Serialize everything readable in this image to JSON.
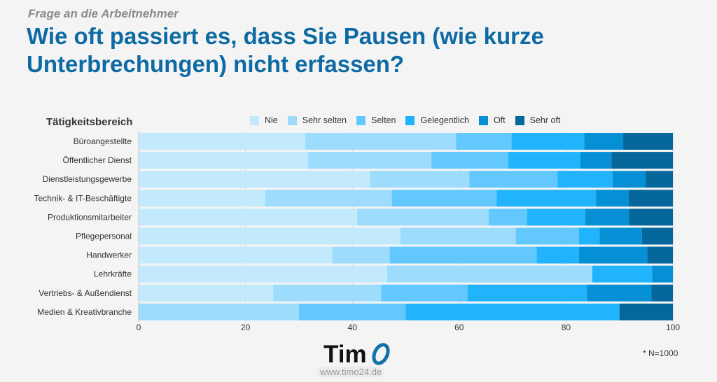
{
  "header": {
    "kicker": "Frage an die Arbeitnehmer",
    "title": "Wie oft passiert es, dass Sie Pausen (wie kurze Unterbrechungen) nicht erfassen?"
  },
  "chart_data": {
    "type": "bar",
    "orientation": "horizontal",
    "stacked": true,
    "category_label": "Tätigkeitsbereich",
    "categories": [
      "Büroangestellte",
      "Öffentlicher Dienst",
      "Dienstleistungsgewerbe",
      "Technik- & IT-Beschäftigte",
      "Produktionsmitarbeiter",
      "Pflegepersonal",
      "Handwerker",
      "Lehrkräfte",
      "Vertriebs- & Außendienst",
      "Medien & Kreativbranche"
    ],
    "series": [
      {
        "name": "Nie",
        "color": "#c2e9fc",
        "values": [
          31.2,
          31.7,
          43.3,
          23.7,
          40.9,
          49.0,
          36.3,
          46.5,
          25.2,
          0
        ]
      },
      {
        "name": "Sehr selten",
        "color": "#9ddcfd",
        "values": [
          28.2,
          23.1,
          18.6,
          23.7,
          24.6,
          21.6,
          10.7,
          38.4,
          20.2,
          30
        ]
      },
      {
        "name": "Selten",
        "color": "#62c8fd",
        "values": [
          10.4,
          14.4,
          16.5,
          19.6,
          7.2,
          11.8,
          27.5,
          0,
          16.2,
          20
        ]
      },
      {
        "name": "Gelegentlich",
        "color": "#21b4fc",
        "values": [
          13.6,
          13.5,
          10.3,
          18.6,
          10.9,
          3.9,
          7.9,
          11.2,
          22.3,
          40
        ]
      },
      {
        "name": "Oft",
        "color": "#0590d6",
        "values": [
          7.3,
          5.8,
          6.2,
          6.1,
          8.2,
          7.9,
          12.8,
          3.9,
          12.1,
          0
        ]
      },
      {
        "name": "Sehr oft",
        "color": "#05679c",
        "values": [
          9.3,
          11.5,
          5.1,
          8.3,
          8.2,
          5.8,
          4.8,
          0,
          4.0,
          10
        ]
      }
    ],
    "xlim": [
      0,
      100
    ],
    "xticks": [
      "0",
      "20",
      "40",
      "60",
      "80",
      "100"
    ],
    "grid": true,
    "legend_position": "top"
  },
  "footer": {
    "note": "* N=1000",
    "logo": "TimO",
    "url": "www.timo24.de"
  }
}
